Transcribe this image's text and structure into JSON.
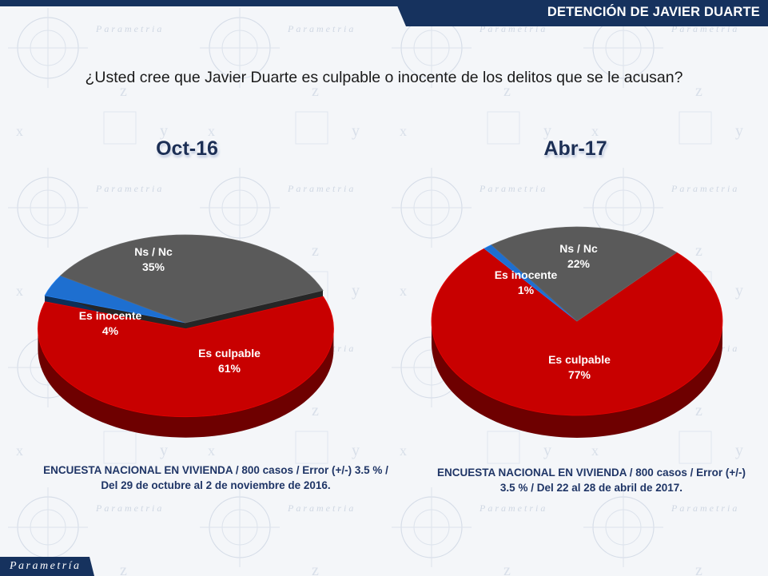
{
  "header": {
    "title": "DETENCIÓN DE JAVIER DUARTE"
  },
  "question": "¿Usted cree que Javier Duarte es culpable o inocente de los delitos que se le acusan?",
  "brand": "Parametría",
  "colors": {
    "culpable": "#c80000",
    "inocente": "#1e6fd0",
    "nsnc": "#5a5a5a",
    "navy": "#16325e"
  },
  "charts": [
    {
      "period": "Oct-16",
      "note_line1": "ENCUESTA NACIONAL EN VIVIENDA / 800 casos / Error (+/-) 3.5 % /",
      "note_line2": "Del 29 de octubre al 2 de noviembre de 2016.",
      "labels": {
        "culpable": {
          "name": "Es culpable",
          "value": "61%"
        },
        "inocente": {
          "name": "Es inocente",
          "value": "4%"
        },
        "nsnc": {
          "name": "Ns / Nc",
          "value": "35%"
        }
      }
    },
    {
      "period": "Abr-17",
      "note_line1": "ENCUESTA NACIONAL EN VIVIENDA / 800 casos / Error (+/-)",
      "note_line2": "3.5 % / Del 22 al 28 de abril de 2017.",
      "labels": {
        "culpable": {
          "name": "Es culpable",
          "value": "77%"
        },
        "inocente": {
          "name": "Es inocente",
          "value": "1%"
        },
        "nsnc": {
          "name": "Ns / Nc",
          "value": "22%"
        }
      }
    }
  ],
  "chart_data": [
    {
      "type": "pie",
      "title": "Oct-16",
      "categories": [
        "Es culpable",
        "Es inocente",
        "Ns / Nc"
      ],
      "values": [
        61,
        4,
        35
      ],
      "colors": [
        "#c80000",
        "#1e6fd0",
        "#5a5a5a"
      ]
    },
    {
      "type": "pie",
      "title": "Abr-17",
      "categories": [
        "Es culpable",
        "Es inocente",
        "Ns / Nc"
      ],
      "values": [
        77,
        1,
        22
      ],
      "colors": [
        "#c80000",
        "#1e6fd0",
        "#5a5a5a"
      ]
    }
  ]
}
